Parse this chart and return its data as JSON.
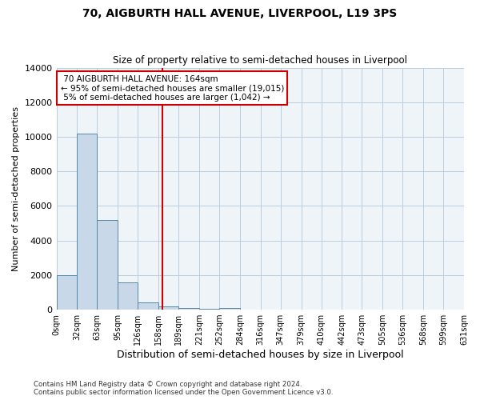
{
  "title": "70, AIGBURTH HALL AVENUE, LIVERPOOL, L19 3PS",
  "subtitle": "Size of property relative to semi-detached houses in Liverpool",
  "xlabel": "Distribution of semi-detached houses by size in Liverpool",
  "ylabel": "Number of semi-detached properties",
  "property_size": 164,
  "property_label": "70 AIGBURTH HALL AVENUE: 164sqm",
  "pct_smaller": 95,
  "count_smaller": 19015,
  "pct_larger": 5,
  "count_larger": 1042,
  "bin_edges": [
    0,
    32,
    63,
    95,
    126,
    158,
    189,
    221,
    252,
    284,
    316,
    347,
    379,
    410,
    442,
    473,
    505,
    536,
    568,
    599,
    631
  ],
  "bin_labels": [
    "0sqm",
    "32sqm",
    "63sqm",
    "95sqm",
    "126sqm",
    "158sqm",
    "189sqm",
    "221sqm",
    "252sqm",
    "284sqm",
    "316sqm",
    "347sqm",
    "379sqm",
    "410sqm",
    "442sqm",
    "473sqm",
    "505sqm",
    "536sqm",
    "568sqm",
    "599sqm",
    "631sqm"
  ],
  "counts": [
    2000,
    10200,
    5200,
    1600,
    420,
    180,
    110,
    70,
    100,
    0,
    0,
    0,
    0,
    0,
    0,
    0,
    0,
    0,
    0,
    0
  ],
  "bar_color": "#c8d8e8",
  "bar_edge_color": "#5588aa",
  "vline_color": "#cc0000",
  "vline_x": 164,
  "annotation_box_color": "#cc0000",
  "ylim": [
    0,
    14000
  ],
  "yticks": [
    0,
    2000,
    4000,
    6000,
    8000,
    10000,
    12000,
    14000
  ],
  "grid_color": "#bbccdd",
  "bg_color": "#eef4f8",
  "footnote": "Contains HM Land Registry data © Crown copyright and database right 2024.\nContains public sector information licensed under the Open Government Licence v3.0."
}
